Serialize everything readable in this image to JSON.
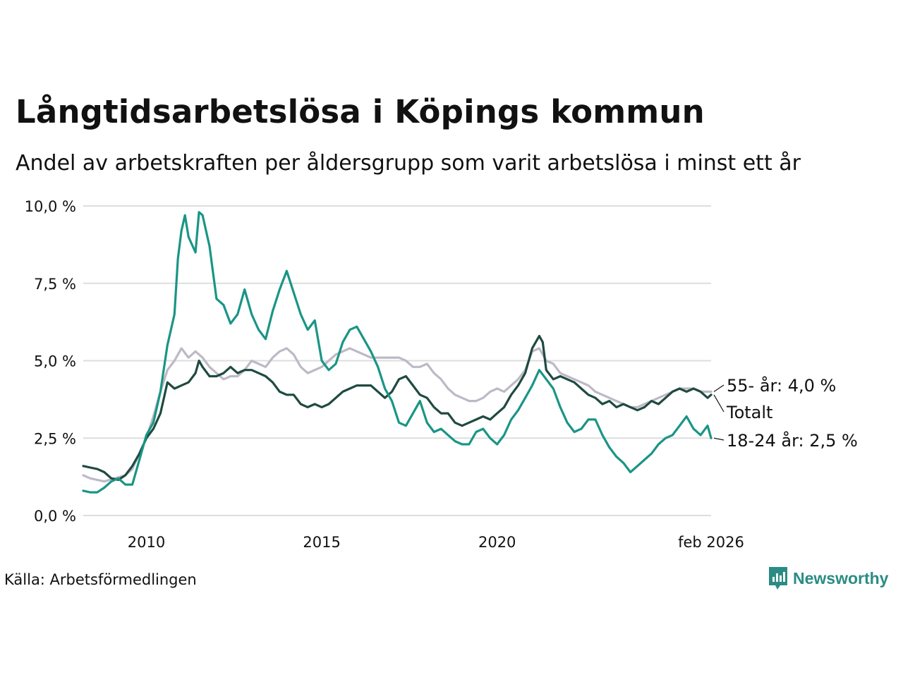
{
  "header": {
    "title": "Långtidsarbetslösa i Köpings kommun",
    "subtitle": "Andel av arbetskraften per åldersgrupp som varit arbetslösa i minst ett år"
  },
  "footer": {
    "source": "Källa: Arbetsförmedlingen",
    "brand": "Newsworthy"
  },
  "colors": {
    "young": "#1a9585",
    "total": "#1f4a40",
    "old": "#bdb9c6",
    "grid": "#dddddd",
    "brand": "#2a8c84"
  },
  "chart_data": {
    "type": "line",
    "title": "Långtidsarbetslösa i Köpings kommun",
    "subtitle": "Andel av arbetskraften per åldersgrupp som varit arbetslösa i minst ett år",
    "xlabel": "",
    "ylabel": "",
    "xlim": [
      2008.2,
      2026.1
    ],
    "ylim": [
      0,
      10
    ],
    "grid": true,
    "yticks": [
      {
        "value": 0,
        "label": "0,0 %"
      },
      {
        "value": 2.5,
        "label": "2,5 %"
      },
      {
        "value": 5,
        "label": "5,0 %"
      },
      {
        "value": 7.5,
        "label": "7,5 %"
      },
      {
        "value": 10,
        "label": "10,0 %"
      }
    ],
    "xticks": [
      {
        "value": 2010,
        "label": "2010"
      },
      {
        "value": 2015,
        "label": "2015"
      },
      {
        "value": 2020,
        "label": "2020"
      },
      {
        "value": 2026.1,
        "label": "feb 2026"
      }
    ],
    "series": [
      {
        "name": "55- år",
        "key": "old",
        "end_label": "55- år: 4,0 %",
        "points": [
          [
            2008.2,
            1.3
          ],
          [
            2008.4,
            1.2
          ],
          [
            2008.8,
            1.1
          ],
          [
            2009.1,
            1.2
          ],
          [
            2009.4,
            1.3
          ],
          [
            2009.6,
            1.5
          ],
          [
            2009.8,
            2.0
          ],
          [
            2010.0,
            2.5
          ],
          [
            2010.2,
            3.2
          ],
          [
            2010.4,
            4.0
          ],
          [
            2010.6,
            4.7
          ],
          [
            2010.8,
            5.0
          ],
          [
            2011.0,
            5.4
          ],
          [
            2011.2,
            5.1
          ],
          [
            2011.4,
            5.3
          ],
          [
            2011.6,
            5.1
          ],
          [
            2011.8,
            4.8
          ],
          [
            2012.0,
            4.6
          ],
          [
            2012.2,
            4.4
          ],
          [
            2012.4,
            4.5
          ],
          [
            2012.6,
            4.5
          ],
          [
            2012.8,
            4.7
          ],
          [
            2013.0,
            5.0
          ],
          [
            2013.2,
            4.9
          ],
          [
            2013.4,
            4.8
          ],
          [
            2013.6,
            5.1
          ],
          [
            2013.8,
            5.3
          ],
          [
            2014.0,
            5.4
          ],
          [
            2014.2,
            5.2
          ],
          [
            2014.4,
            4.8
          ],
          [
            2014.6,
            4.6
          ],
          [
            2014.8,
            4.7
          ],
          [
            2015.0,
            4.8
          ],
          [
            2015.2,
            5.0
          ],
          [
            2015.4,
            5.2
          ],
          [
            2015.6,
            5.3
          ],
          [
            2015.8,
            5.4
          ],
          [
            2016.0,
            5.3
          ],
          [
            2016.2,
            5.2
          ],
          [
            2016.4,
            5.1
          ],
          [
            2016.6,
            5.1
          ],
          [
            2016.8,
            5.1
          ],
          [
            2017.0,
            5.1
          ],
          [
            2017.2,
            5.1
          ],
          [
            2017.4,
            5.0
          ],
          [
            2017.6,
            4.8
          ],
          [
            2017.8,
            4.8
          ],
          [
            2018.0,
            4.9
          ],
          [
            2018.2,
            4.6
          ],
          [
            2018.4,
            4.4
          ],
          [
            2018.6,
            4.1
          ],
          [
            2018.8,
            3.9
          ],
          [
            2019.0,
            3.8
          ],
          [
            2019.2,
            3.7
          ],
          [
            2019.4,
            3.7
          ],
          [
            2019.6,
            3.8
          ],
          [
            2019.8,
            4.0
          ],
          [
            2020.0,
            4.1
          ],
          [
            2020.2,
            4.0
          ],
          [
            2020.4,
            4.2
          ],
          [
            2020.6,
            4.4
          ],
          [
            2020.8,
            4.7
          ],
          [
            2021.0,
            5.3
          ],
          [
            2021.2,
            5.4
          ],
          [
            2021.4,
            5.0
          ],
          [
            2021.6,
            4.9
          ],
          [
            2021.8,
            4.6
          ],
          [
            2022.0,
            4.5
          ],
          [
            2022.2,
            4.4
          ],
          [
            2022.4,
            4.3
          ],
          [
            2022.6,
            4.2
          ],
          [
            2022.8,
            4.0
          ],
          [
            2023.0,
            3.9
          ],
          [
            2023.2,
            3.8
          ],
          [
            2023.4,
            3.7
          ],
          [
            2023.6,
            3.6
          ],
          [
            2023.8,
            3.5
          ],
          [
            2024.0,
            3.5
          ],
          [
            2024.2,
            3.6
          ],
          [
            2024.4,
            3.7
          ],
          [
            2024.6,
            3.8
          ],
          [
            2024.8,
            3.9
          ],
          [
            2025.0,
            4.0
          ],
          [
            2025.2,
            4.1
          ],
          [
            2025.4,
            4.1
          ],
          [
            2025.6,
            4.1
          ],
          [
            2025.8,
            4.0
          ],
          [
            2026.0,
            4.0
          ],
          [
            2026.1,
            4.0
          ]
        ]
      },
      {
        "name": "Totalt",
        "key": "total",
        "end_label": "Totalt",
        "points": [
          [
            2008.2,
            1.6
          ],
          [
            2008.4,
            1.55
          ],
          [
            2008.6,
            1.5
          ],
          [
            2008.8,
            1.4
          ],
          [
            2009.0,
            1.2
          ],
          [
            2009.2,
            1.15
          ],
          [
            2009.4,
            1.3
          ],
          [
            2009.6,
            1.6
          ],
          [
            2009.8,
            2.0
          ],
          [
            2010.0,
            2.5
          ],
          [
            2010.2,
            2.8
          ],
          [
            2010.4,
            3.3
          ],
          [
            2010.5,
            3.8
          ],
          [
            2010.6,
            4.3
          ],
          [
            2010.8,
            4.1
          ],
          [
            2011.0,
            4.2
          ],
          [
            2011.2,
            4.3
          ],
          [
            2011.4,
            4.6
          ],
          [
            2011.5,
            5.0
          ],
          [
            2011.6,
            4.8
          ],
          [
            2011.8,
            4.5
          ],
          [
            2012.0,
            4.5
          ],
          [
            2012.2,
            4.6
          ],
          [
            2012.4,
            4.8
          ],
          [
            2012.6,
            4.6
          ],
          [
            2012.8,
            4.7
          ],
          [
            2013.0,
            4.7
          ],
          [
            2013.2,
            4.6
          ],
          [
            2013.4,
            4.5
          ],
          [
            2013.6,
            4.3
          ],
          [
            2013.8,
            4.0
          ],
          [
            2014.0,
            3.9
          ],
          [
            2014.2,
            3.9
          ],
          [
            2014.4,
            3.6
          ],
          [
            2014.6,
            3.5
          ],
          [
            2014.8,
            3.6
          ],
          [
            2015.0,
            3.5
          ],
          [
            2015.2,
            3.6
          ],
          [
            2015.4,
            3.8
          ],
          [
            2015.6,
            4.0
          ],
          [
            2015.8,
            4.1
          ],
          [
            2016.0,
            4.2
          ],
          [
            2016.2,
            4.2
          ],
          [
            2016.4,
            4.2
          ],
          [
            2016.6,
            4.0
          ],
          [
            2016.8,
            3.8
          ],
          [
            2017.0,
            4.0
          ],
          [
            2017.2,
            4.4
          ],
          [
            2017.4,
            4.5
          ],
          [
            2017.6,
            4.2
          ],
          [
            2017.8,
            3.9
          ],
          [
            2018.0,
            3.8
          ],
          [
            2018.2,
            3.5
          ],
          [
            2018.4,
            3.3
          ],
          [
            2018.6,
            3.3
          ],
          [
            2018.8,
            3.0
          ],
          [
            2019.0,
            2.9
          ],
          [
            2019.2,
            3.0
          ],
          [
            2019.4,
            3.1
          ],
          [
            2019.6,
            3.2
          ],
          [
            2019.8,
            3.1
          ],
          [
            2020.0,
            3.3
          ],
          [
            2020.2,
            3.5
          ],
          [
            2020.4,
            3.9
          ],
          [
            2020.6,
            4.2
          ],
          [
            2020.8,
            4.6
          ],
          [
            2021.0,
            5.4
          ],
          [
            2021.2,
            5.8
          ],
          [
            2021.3,
            5.6
          ],
          [
            2021.4,
            4.7
          ],
          [
            2021.6,
            4.4
          ],
          [
            2021.8,
            4.5
          ],
          [
            2022.0,
            4.4
          ],
          [
            2022.2,
            4.3
          ],
          [
            2022.4,
            4.1
          ],
          [
            2022.6,
            3.9
          ],
          [
            2022.8,
            3.8
          ],
          [
            2023.0,
            3.6
          ],
          [
            2023.2,
            3.7
          ],
          [
            2023.4,
            3.5
          ],
          [
            2023.6,
            3.6
          ],
          [
            2023.8,
            3.5
          ],
          [
            2024.0,
            3.4
          ],
          [
            2024.2,
            3.5
          ],
          [
            2024.4,
            3.7
          ],
          [
            2024.6,
            3.6
          ],
          [
            2024.8,
            3.8
          ],
          [
            2025.0,
            4.0
          ],
          [
            2025.2,
            4.1
          ],
          [
            2025.4,
            4.0
          ],
          [
            2025.6,
            4.1
          ],
          [
            2025.8,
            4.0
          ],
          [
            2026.0,
            3.8
          ],
          [
            2026.1,
            3.9
          ]
        ]
      },
      {
        "name": "18-24 år",
        "key": "young",
        "end_label": "18-24 år: 2,5 %",
        "points": [
          [
            2008.2,
            0.8
          ],
          [
            2008.4,
            0.75
          ],
          [
            2008.6,
            0.75
          ],
          [
            2008.8,
            0.9
          ],
          [
            2009.0,
            1.1
          ],
          [
            2009.2,
            1.2
          ],
          [
            2009.4,
            1.0
          ],
          [
            2009.6,
            1.0
          ],
          [
            2009.8,
            1.8
          ],
          [
            2010.0,
            2.6
          ],
          [
            2010.2,
            3.0
          ],
          [
            2010.4,
            4.0
          ],
          [
            2010.6,
            5.5
          ],
          [
            2010.8,
            6.5
          ],
          [
            2010.9,
            8.3
          ],
          [
            2011.0,
            9.2
          ],
          [
            2011.1,
            9.7
          ],
          [
            2011.2,
            9.0
          ],
          [
            2011.4,
            8.5
          ],
          [
            2011.5,
            9.8
          ],
          [
            2011.6,
            9.7
          ],
          [
            2011.8,
            8.7
          ],
          [
            2012.0,
            7.0
          ],
          [
            2012.2,
            6.8
          ],
          [
            2012.4,
            6.2
          ],
          [
            2012.6,
            6.5
          ],
          [
            2012.8,
            7.3
          ],
          [
            2013.0,
            6.5
          ],
          [
            2013.2,
            6.0
          ],
          [
            2013.4,
            5.7
          ],
          [
            2013.6,
            6.6
          ],
          [
            2013.8,
            7.3
          ],
          [
            2014.0,
            7.9
          ],
          [
            2014.2,
            7.2
          ],
          [
            2014.4,
            6.5
          ],
          [
            2014.6,
            6.0
          ],
          [
            2014.8,
            6.3
          ],
          [
            2015.0,
            5.0
          ],
          [
            2015.2,
            4.7
          ],
          [
            2015.4,
            4.9
          ],
          [
            2015.6,
            5.6
          ],
          [
            2015.8,
            6.0
          ],
          [
            2016.0,
            6.1
          ],
          [
            2016.2,
            5.7
          ],
          [
            2016.4,
            5.3
          ],
          [
            2016.6,
            4.8
          ],
          [
            2016.8,
            4.1
          ],
          [
            2017.0,
            3.7
          ],
          [
            2017.2,
            3.0
          ],
          [
            2017.4,
            2.9
          ],
          [
            2017.6,
            3.3
          ],
          [
            2017.8,
            3.7
          ],
          [
            2018.0,
            3.0
          ],
          [
            2018.2,
            2.7
          ],
          [
            2018.4,
            2.8
          ],
          [
            2018.6,
            2.6
          ],
          [
            2018.8,
            2.4
          ],
          [
            2019.0,
            2.3
          ],
          [
            2019.2,
            2.3
          ],
          [
            2019.4,
            2.7
          ],
          [
            2019.6,
            2.8
          ],
          [
            2019.8,
            2.5
          ],
          [
            2020.0,
            2.3
          ],
          [
            2020.2,
            2.6
          ],
          [
            2020.4,
            3.1
          ],
          [
            2020.6,
            3.4
          ],
          [
            2020.8,
            3.8
          ],
          [
            2021.0,
            4.2
          ],
          [
            2021.2,
            4.7
          ],
          [
            2021.4,
            4.4
          ],
          [
            2021.6,
            4.1
          ],
          [
            2021.8,
            3.5
          ],
          [
            2022.0,
            3.0
          ],
          [
            2022.2,
            2.7
          ],
          [
            2022.4,
            2.8
          ],
          [
            2022.6,
            3.1
          ],
          [
            2022.8,
            3.1
          ],
          [
            2023.0,
            2.6
          ],
          [
            2023.2,
            2.2
          ],
          [
            2023.4,
            1.9
          ],
          [
            2023.6,
            1.7
          ],
          [
            2023.8,
            1.4
          ],
          [
            2024.0,
            1.6
          ],
          [
            2024.2,
            1.8
          ],
          [
            2024.4,
            2.0
          ],
          [
            2024.6,
            2.3
          ],
          [
            2024.8,
            2.5
          ],
          [
            2025.0,
            2.6
          ],
          [
            2025.2,
            2.9
          ],
          [
            2025.4,
            3.2
          ],
          [
            2025.6,
            2.8
          ],
          [
            2025.8,
            2.6
          ],
          [
            2026.0,
            2.9
          ],
          [
            2026.1,
            2.5
          ]
        ]
      }
    ]
  }
}
